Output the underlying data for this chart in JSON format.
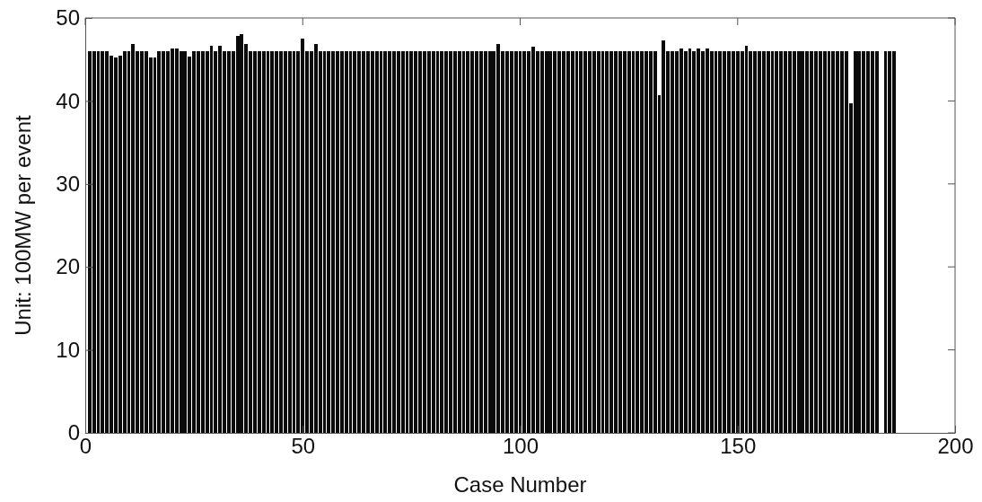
{
  "chart_data": {
    "type": "bar",
    "xlabel": "Case Number",
    "ylabel": "Unit: 100MW per event",
    "color": "#0a0a0a",
    "x": [
      1,
      2,
      3,
      4,
      5,
      6,
      7,
      8,
      9,
      10,
      11,
      12,
      13,
      14,
      15,
      16,
      17,
      18,
      19,
      20,
      21,
      22,
      23,
      24,
      25,
      26,
      27,
      28,
      29,
      30,
      31,
      32,
      33,
      34,
      35,
      36,
      37,
      38,
      39,
      40,
      41,
      42,
      43,
      44,
      45,
      46,
      47,
      48,
      49,
      50,
      51,
      52,
      53,
      54,
      55,
      56,
      57,
      58,
      59,
      60,
      61,
      62,
      63,
      64,
      65,
      66,
      67,
      68,
      69,
      70,
      71,
      72,
      73,
      74,
      75,
      76,
      77,
      78,
      79,
      80,
      81,
      82,
      83,
      84,
      85,
      86,
      87,
      88,
      89,
      90,
      91,
      92,
      93,
      94,
      95,
      96,
      97,
      98,
      99,
      100,
      101,
      102,
      103,
      104,
      105,
      106,
      107,
      108,
      109,
      110,
      111,
      112,
      113,
      114,
      115,
      116,
      117,
      118,
      119,
      120,
      121,
      122,
      123,
      124,
      125,
      126,
      127,
      128,
      129,
      130,
      131,
      132,
      133,
      134,
      135,
      136,
      137,
      138,
      139,
      140,
      141,
      142,
      143,
      144,
      145,
      146,
      147,
      148,
      149,
      150,
      151,
      152,
      153,
      154,
      155,
      156,
      157,
      158,
      159,
      160,
      161,
      162,
      163,
      164,
      165,
      166,
      167,
      168,
      169,
      170,
      171,
      172,
      173,
      174,
      175,
      176,
      177,
      178,
      179,
      180,
      181,
      182,
      183,
      184,
      185,
      186
    ],
    "values": [
      46,
      46,
      46,
      46,
      46,
      45.5,
      45.2,
      45.5,
      46,
      46,
      46.9,
      46,
      46,
      46,
      45.2,
      45.2,
      46,
      46,
      46,
      46.3,
      46.3,
      46,
      46,
      45.4,
      46,
      46,
      46,
      46,
      46.6,
      46,
      46.6,
      46,
      46,
      46,
      47.8,
      48.1,
      46.9,
      46,
      46,
      46,
      46,
      46,
      46,
      46,
      46,
      46,
      46,
      46,
      46,
      47.5,
      46,
      46,
      46.9,
      46,
      46,
      46,
      46,
      46,
      46,
      46,
      46,
      46,
      46,
      46,
      46,
      46,
      46,
      46,
      46,
      46,
      46,
      46,
      46,
      46,
      46,
      46,
      46,
      46,
      46,
      46,
      46,
      46,
      46,
      46,
      46,
      46,
      46,
      46,
      46,
      46,
      46,
      46,
      46,
      46,
      46.9,
      46,
      46,
      46,
      46,
      46,
      46,
      46,
      46.5,
      46,
      46,
      46,
      46,
      46,
      46,
      46,
      46,
      46,
      46,
      46,
      46,
      46,
      46,
      46,
      46,
      46,
      46,
      46,
      46,
      46,
      46,
      46,
      46,
      46,
      46,
      46,
      46,
      40.7,
      47.3,
      46,
      46,
      46,
      46.3,
      46,
      46.3,
      46,
      46.3,
      46,
      46.3,
      46,
      46,
      46,
      46,
      46,
      46,
      46,
      46,
      46.6,
      46,
      46,
      46,
      46,
      46,
      46,
      46,
      46,
      46,
      46,
      46,
      46,
      46,
      46,
      46,
      46,
      46,
      46,
      46,
      46,
      46,
      46,
      46,
      39.7,
      46,
      46,
      46,
      46,
      46,
      46,
      0,
      46,
      46,
      46
    ],
    "xlim": [
      0,
      200
    ],
    "xticks": [
      0,
      50,
      100,
      150,
      200
    ],
    "ylim": [
      0,
      50
    ],
    "yticks": [
      0,
      10,
      20,
      30,
      40,
      50
    ]
  }
}
